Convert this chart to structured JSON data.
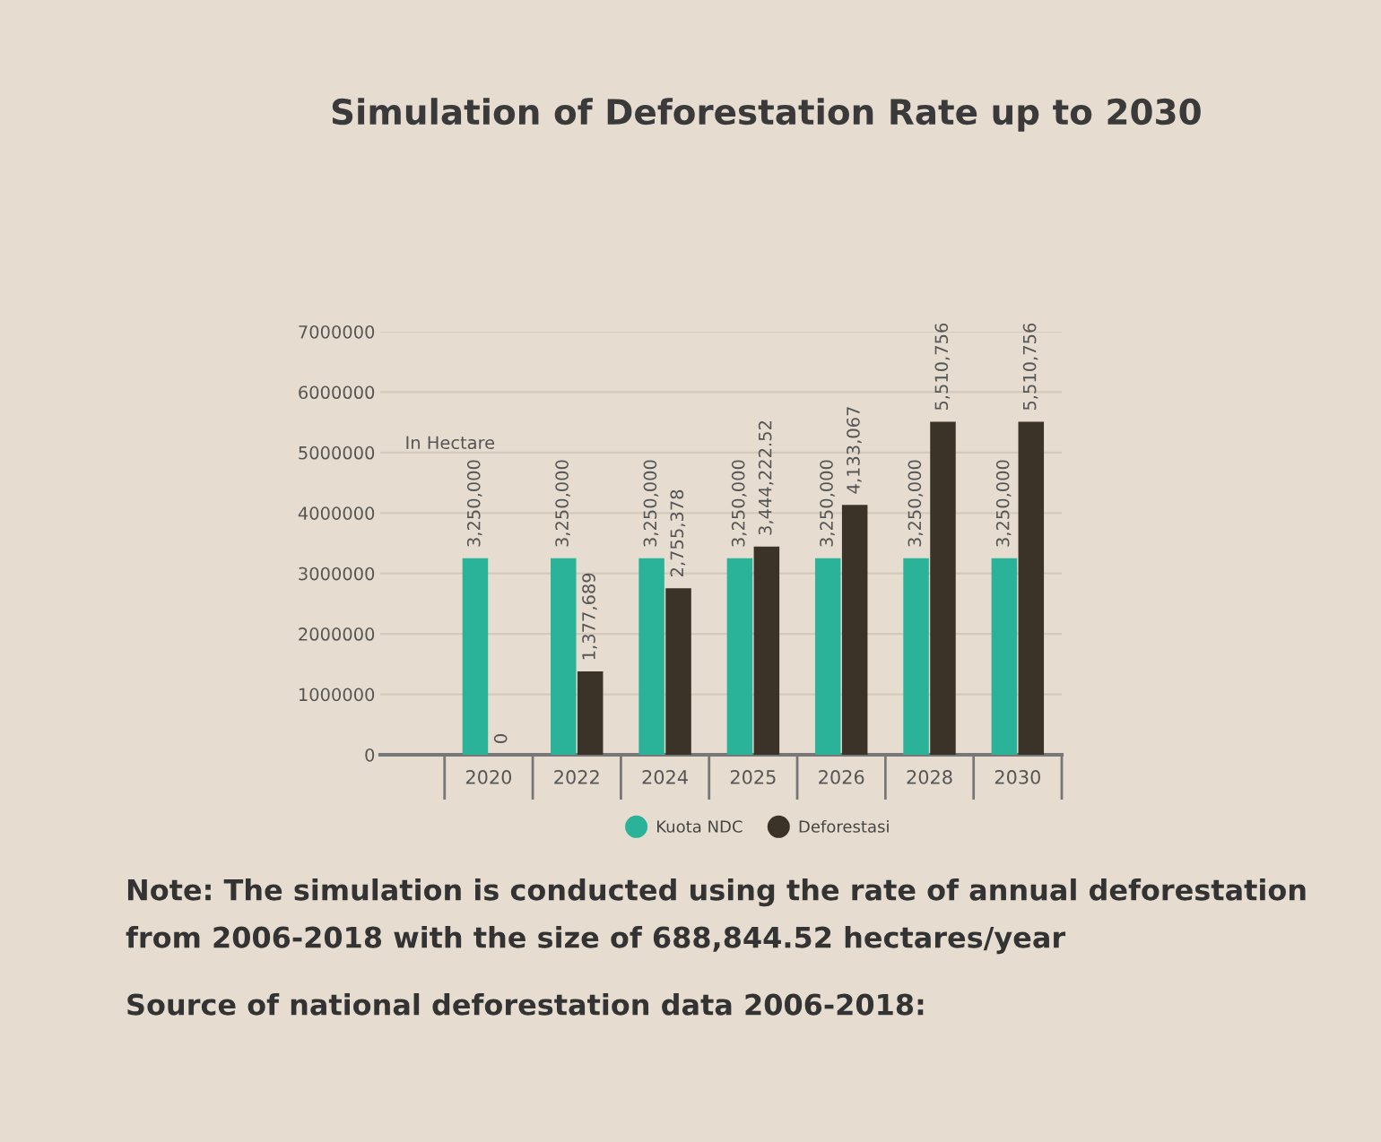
{
  "chart_data": {
    "type": "bar",
    "title": "Simulation of Deforestation Rate up to 2030",
    "ylabel": "In Hectare",
    "categories": [
      "2020",
      "2022",
      "2024",
      "2025",
      "2026",
      "2028",
      "2030"
    ],
    "series": [
      {
        "name": "Kuota NDC",
        "color": "#2bb39a",
        "values": [
          3250000,
          3250000,
          3250000,
          3250000,
          3250000,
          3250000,
          3250000
        ],
        "value_labels": [
          "3,250,000",
          "3,250,000",
          "3,250,000",
          "3,250,000",
          "3,250,000",
          "3,250,000",
          "3,250,000"
        ]
      },
      {
        "name": "Deforestasi",
        "color": "#3b3328",
        "values": [
          0,
          1377689,
          2755378,
          3444222.52,
          4133067,
          5510756,
          5510756
        ],
        "value_labels": [
          "0",
          "1,377,689",
          "2,755,378",
          "3,444,222.52",
          "4,133,067",
          "5,510,756",
          "5,510,756"
        ]
      }
    ],
    "ylim": [
      0,
      7000000
    ],
    "yticks": [
      0,
      1000000,
      2000000,
      3000000,
      4000000,
      5000000,
      6000000,
      7000000
    ],
    "grid": "y",
    "legend": "bottom",
    "annotations": [
      "Note: The simulation is conducted using the rate of annual deforestation from 2006-2018 with the size of 688,844.52 hectares/year",
      "Source of national deforestation data 2006-2018:"
    ]
  }
}
